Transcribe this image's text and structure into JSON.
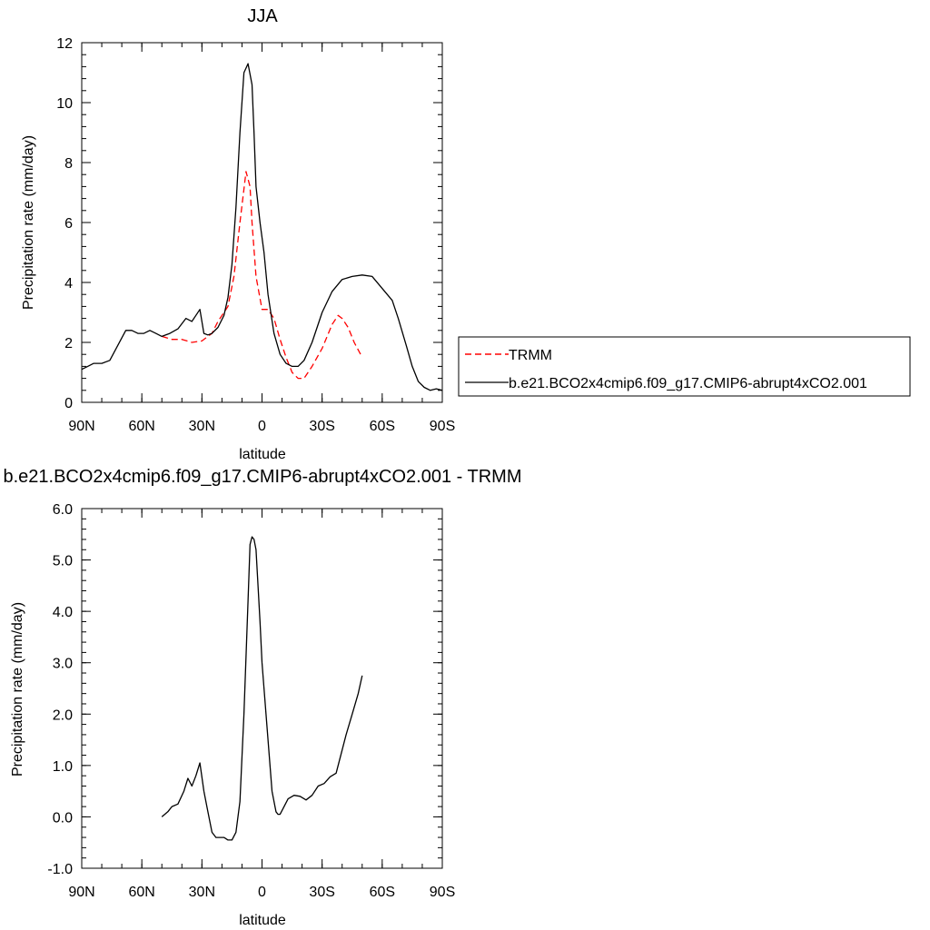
{
  "chart_data": [
    {
      "type": "line",
      "title": "JJA",
      "xlabel": "latitude",
      "ylabel": "Precipitation rate (mm/day)",
      "xlim": [
        90,
        -90
      ],
      "ylim": [
        0,
        12
      ],
      "xticks": [
        90,
        60,
        30,
        0,
        -30,
        -60,
        -90
      ],
      "xtick_labels": [
        "90N",
        "60N",
        "30N",
        "0",
        "30S",
        "60S",
        "90S"
      ],
      "yticks": [
        0,
        2,
        4,
        6,
        8,
        10,
        12
      ],
      "ytick_labels": [
        "0",
        "2",
        "4",
        "6",
        "8",
        "10",
        "12"
      ],
      "grid": false,
      "legend_position": "right",
      "series": [
        {
          "name": "TRMM",
          "color": "#ff0000",
          "dash": "dashed",
          "x": [
            50,
            45,
            40,
            35,
            30,
            27,
            25,
            22,
            20,
            17,
            14,
            11,
            8,
            6,
            5,
            3,
            0,
            -3,
            -6,
            -9,
            -12,
            -15,
            -18,
            -21,
            -25,
            -30,
            -35,
            -38,
            -40,
            -43,
            -46,
            -50
          ],
          "y": [
            2.2,
            2.1,
            2.1,
            2.0,
            2.05,
            2.2,
            2.3,
            2.7,
            2.9,
            3.2,
            4.2,
            6.0,
            7.7,
            7.2,
            6.0,
            4.2,
            3.1,
            3.1,
            2.8,
            2.1,
            1.5,
            1.0,
            0.8,
            0.8,
            1.2,
            1.8,
            2.6,
            2.9,
            2.8,
            2.5,
            2.0,
            1.5
          ]
        },
        {
          "name": "b.e21.BCO2x4cmip6.f09_g17.CMIP6-abrupt4xCO2.001",
          "color": "#000000",
          "dash": "solid",
          "x": [
            90,
            87,
            84,
            80,
            76,
            72,
            68,
            65,
            62,
            59,
            56,
            53,
            50,
            46,
            42,
            38,
            35,
            33,
            31,
            29,
            27,
            25,
            22,
            19,
            17,
            15,
            13,
            11,
            9,
            7,
            5,
            4,
            3,
            1,
            -1,
            -3,
            -6,
            -9,
            -12,
            -15,
            -18,
            -21,
            -25,
            -30,
            -35,
            -40,
            -45,
            -50,
            -55,
            -60,
            -65,
            -68,
            -72,
            -75,
            -78,
            -81,
            -84,
            -87,
            -90
          ],
          "y": [
            1.1,
            1.2,
            1.3,
            1.3,
            1.4,
            1.9,
            2.4,
            2.4,
            2.3,
            2.3,
            2.4,
            2.3,
            2.2,
            2.3,
            2.45,
            2.8,
            2.7,
            2.9,
            3.1,
            2.3,
            2.25,
            2.3,
            2.5,
            2.9,
            3.5,
            4.6,
            6.5,
            9.0,
            11.0,
            11.3,
            10.6,
            9.0,
            7.2,
            6.0,
            5.0,
            3.6,
            2.3,
            1.6,
            1.3,
            1.2,
            1.2,
            1.4,
            2.0,
            3.0,
            3.7,
            4.1,
            4.2,
            4.25,
            4.2,
            3.8,
            3.4,
            2.8,
            1.9,
            1.2,
            0.7,
            0.5,
            0.4,
            0.45,
            0.4
          ]
        }
      ]
    },
    {
      "type": "line",
      "title": "b.e21.BCO2x4cmip6.f09_g17.CMIP6-abrupt4xCO2.001 - TRMM",
      "xlabel": "latitude",
      "ylabel": "Precipitation rate (mm/day)",
      "xlim": [
        90,
        -90
      ],
      "ylim": [
        -1,
        6
      ],
      "xticks": [
        90,
        60,
        30,
        0,
        -30,
        -60,
        -90
      ],
      "xtick_labels": [
        "90N",
        "60N",
        "30N",
        "0",
        "30S",
        "60S",
        "90S"
      ],
      "yticks": [
        -1,
        0,
        1,
        2,
        3,
        4,
        5,
        6
      ],
      "ytick_labels": [
        "-1.0",
        "0.0",
        "1.0",
        "2.0",
        "3.0",
        "4.0",
        "5.0",
        "6.0"
      ],
      "grid": false,
      "series": [
        {
          "color": "#000000",
          "dash": "solid",
          "x": [
            50,
            47,
            45,
            42,
            39,
            37,
            35,
            33,
            31,
            29,
            27,
            25,
            23,
            21,
            19,
            17,
            15,
            13,
            11,
            9,
            7,
            6,
            5,
            4,
            3,
            2,
            1,
            0,
            -1,
            -3,
            -5,
            -7,
            -8,
            -9,
            -11,
            -13,
            -16,
            -19,
            -22,
            -25,
            -28,
            -31,
            -34,
            -37,
            -40,
            -42,
            -45,
            -48,
            -50
          ],
          "y": [
            0.0,
            0.1,
            0.2,
            0.25,
            0.5,
            0.75,
            0.6,
            0.8,
            1.05,
            0.5,
            0.1,
            -0.3,
            -0.4,
            -0.4,
            -0.4,
            -0.45,
            -0.45,
            -0.3,
            0.3,
            2.0,
            4.2,
            5.3,
            5.45,
            5.4,
            5.2,
            4.5,
            3.8,
            3.0,
            2.5,
            1.5,
            0.5,
            0.1,
            0.05,
            0.05,
            0.2,
            0.35,
            0.42,
            0.4,
            0.33,
            0.42,
            0.6,
            0.65,
            0.78,
            0.85,
            1.3,
            1.6,
            2.0,
            2.4,
            2.75
          ]
        }
      ]
    }
  ]
}
